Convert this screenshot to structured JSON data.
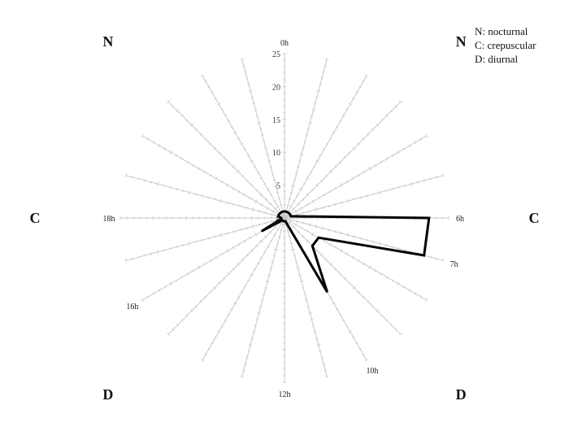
{
  "chart_data": {
    "type": "radar",
    "angular_axis": {
      "spokes": 24,
      "direction": "clockwise",
      "zero_at": "top",
      "labels": [
        {
          "index": 0,
          "text": "0h"
        },
        {
          "index": 6,
          "text": "6h"
        },
        {
          "index": 7,
          "text": "7h"
        },
        {
          "index": 10,
          "text": "10h"
        },
        {
          "index": 12,
          "text": "12h"
        },
        {
          "index": 16,
          "text": "16h"
        },
        {
          "index": 18,
          "text": "18h"
        }
      ]
    },
    "radial_axis": {
      "range": [
        0,
        25
      ],
      "ticks": [
        0,
        5,
        10,
        15,
        20,
        25
      ],
      "minor_step": 1
    },
    "series": [
      {
        "hours": [
          0,
          1,
          2,
          3,
          4,
          5,
          6,
          7,
          8,
          9,
          10,
          11,
          12,
          13,
          14,
          15,
          16,
          17,
          18,
          19,
          20,
          21,
          22,
          23
        ],
        "values": [
          1,
          1,
          1,
          1,
          1,
          1,
          22,
          22,
          6,
          6,
          13,
          0.5,
          0.5,
          0.5,
          0.5,
          0.5,
          4,
          0.5,
          0.5,
          1,
          1,
          1,
          1,
          1
        ]
      }
    ],
    "sector_labels": [
      {
        "text": "N",
        "hour": 21
      },
      {
        "text": "N",
        "hour": 3
      },
      {
        "text": "C",
        "hour": 18
      },
      {
        "text": "C",
        "hour": 6
      },
      {
        "text": "D",
        "hour": 15
      },
      {
        "text": "D",
        "hour": 9
      }
    ],
    "legend": {
      "position": "top-right",
      "items": [
        "N: nocturnal",
        "C: crepuscular",
        "D: diurnal"
      ]
    },
    "colors": {
      "spoke": "#c8c8c8",
      "data_line": "#000000"
    }
  }
}
